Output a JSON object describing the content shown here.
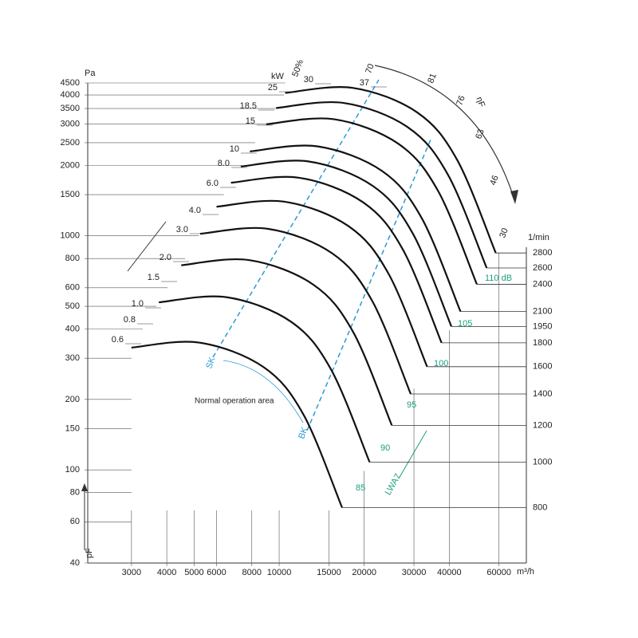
{
  "chart_data": {
    "type": "fan-curves",
    "y_label": "Pa",
    "y_label_bottom": "pF",
    "x_unit": "m³/h",
    "speed_unit": "1/min",
    "power_unit": "kW",
    "efficiency_symbol": "ηF",
    "annotation": "Normal operation area",
    "sk_label": "SK",
    "bk_label": "BK",
    "sound_label": "LWA7",
    "log_x": true,
    "log_y": true,
    "xlim": [
      2100,
      75000
    ],
    "ylim": [
      40,
      4500
    ],
    "xticks": [
      3000,
      4000,
      5000,
      6000,
      8000,
      10000,
      15000,
      20000,
      30000,
      40000,
      60000
    ],
    "yticks": [
      40,
      60,
      80,
      100,
      150,
      200,
      300,
      400,
      500,
      600,
      800,
      1000,
      1500,
      2000,
      2500,
      3000,
      3500,
      4000,
      4500
    ],
    "curve_color": "#111111",
    "series": [
      {
        "name": "800",
        "x": [
          3000,
          5200,
          8800,
          12200,
          16700
        ],
        "values": [
          333,
          350,
          275,
          172,
          69
        ]
      },
      {
        "name": "1000",
        "x": [
          3750,
          6500,
          11000,
          15250,
          20900
        ],
        "values": [
          520,
          547,
          430,
          269,
          108
        ]
      },
      {
        "name": "1200",
        "x": [
          4500,
          7800,
          13200,
          18300,
          25050
        ],
        "values": [
          749,
          788,
          619,
          387,
          155
        ]
      },
      {
        "name": "1400",
        "x": [
          5250,
          9100,
          15400,
          21350,
          29225
        ],
        "values": [
          1020,
          1072,
          842,
          527,
          211
        ]
      },
      {
        "name": "1600",
        "x": [
          6000,
          10400,
          17600,
          24400,
          33400
        ],
        "values": [
          1332,
          1400,
          1100,
          688,
          276
        ]
      },
      {
        "name": "1800",
        "x": [
          6750,
          11700,
          19800,
          27450,
          37575
        ],
        "values": [
          1686,
          1772,
          1392,
          871,
          349
        ]
      },
      {
        "name": "1950",
        "x": [
          7313,
          12675,
          21450,
          29738,
          40706
        ],
        "values": [
          1978,
          2080,
          1634,
          1022,
          410
        ]
      },
      {
        "name": "2100",
        "x": [
          7875,
          13650,
          23100,
          32025,
          43838
        ],
        "values": [
          2295,
          2412,
          1895,
          1185,
          475
        ]
      },
      {
        "name": "2400",
        "x": [
          9000,
          15600,
          26400,
          36600,
          50100
        ],
        "values": [
          2997,
          3150,
          2475,
          1548,
          621
        ]
      },
      {
        "name": "2600",
        "x": [
          9750,
          16900,
          28600,
          39650,
          54275
        ],
        "values": [
          3517,
          3697,
          2905,
          1817,
          729
        ]
      },
      {
        "name": "2800",
        "x": [
          10500,
          18200,
          30800,
          42700,
          58450
        ],
        "values": [
          4079,
          4288,
          3368,
          2107,
          845
        ]
      }
    ],
    "power_labels": [
      "0.6",
      "0.8",
      "1.0",
      "1.5",
      "2.0",
      "3.0",
      "4.0",
      "6.0",
      "8.0",
      "10",
      "15",
      "18.5",
      "25",
      "30",
      "37"
    ],
    "sound_labels": [
      "85",
      "90",
      "95",
      "100",
      "105",
      "110 dB"
    ],
    "efficiency_labels": [
      "50%",
      "70",
      "81",
      "76",
      "63",
      "46",
      "30"
    ]
  }
}
